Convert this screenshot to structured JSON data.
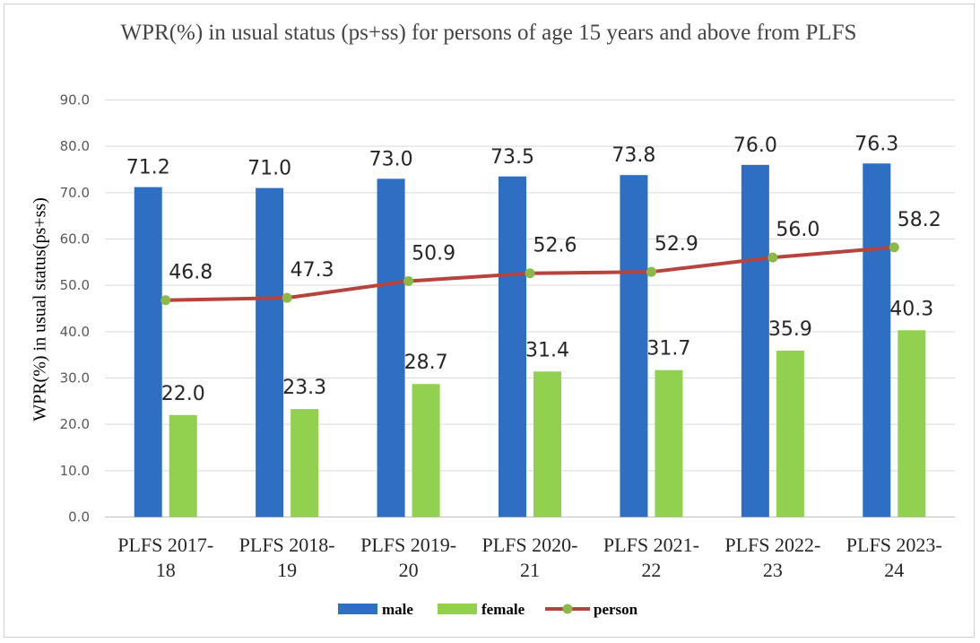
{
  "chart_data": {
    "type": "bar",
    "title": "WPR(%) in usual status (ps+ss) for persons of age 15 years and above from PLFS",
    "xlabel": "",
    "ylabel": "WPR(%) in usual status(ps+ss)",
    "ylim": [
      0,
      90
    ],
    "yticks": [
      "0.0",
      "10.0",
      "20.0",
      "30.0",
      "40.0",
      "50.0",
      "60.0",
      "70.0",
      "80.0",
      "90.0"
    ],
    "grid": true,
    "legend_position": "bottom",
    "categories": [
      [
        "PLFS 2017-",
        "18"
      ],
      [
        "PLFS 2018-",
        "19"
      ],
      [
        "PLFS 2019-",
        "20"
      ],
      [
        "PLFS 2020-",
        "21"
      ],
      [
        "PLFS 2021-",
        "22"
      ],
      [
        "PLFS 2022-",
        "23"
      ],
      [
        "PLFS 2023-",
        "24"
      ]
    ],
    "series": [
      {
        "name": "male",
        "kind": "bar",
        "color": "#2e6fc4",
        "values": [
          71.2,
          71.0,
          73.0,
          73.5,
          73.8,
          76.0,
          76.3
        ],
        "labels": [
          "71.2",
          "71.0",
          "73.0",
          "73.5",
          "73.8",
          "76.0",
          "76.3"
        ]
      },
      {
        "name": "female",
        "kind": "bar",
        "color": "#92d050",
        "values": [
          22.0,
          23.3,
          28.7,
          31.4,
          31.7,
          35.9,
          40.3
        ],
        "labels": [
          "22.0",
          "23.3",
          "28.7",
          "31.4",
          "31.7",
          "35.9",
          "40.3"
        ]
      },
      {
        "name": "person",
        "kind": "line",
        "color": "#b5443f",
        "marker_color": "#8cb84a",
        "values": [
          46.8,
          47.3,
          50.9,
          52.6,
          52.9,
          56.0,
          58.2
        ],
        "labels": [
          "46.8",
          "47.3",
          "50.9",
          "52.6",
          "52.9",
          "56.0",
          "58.2"
        ]
      }
    ]
  }
}
